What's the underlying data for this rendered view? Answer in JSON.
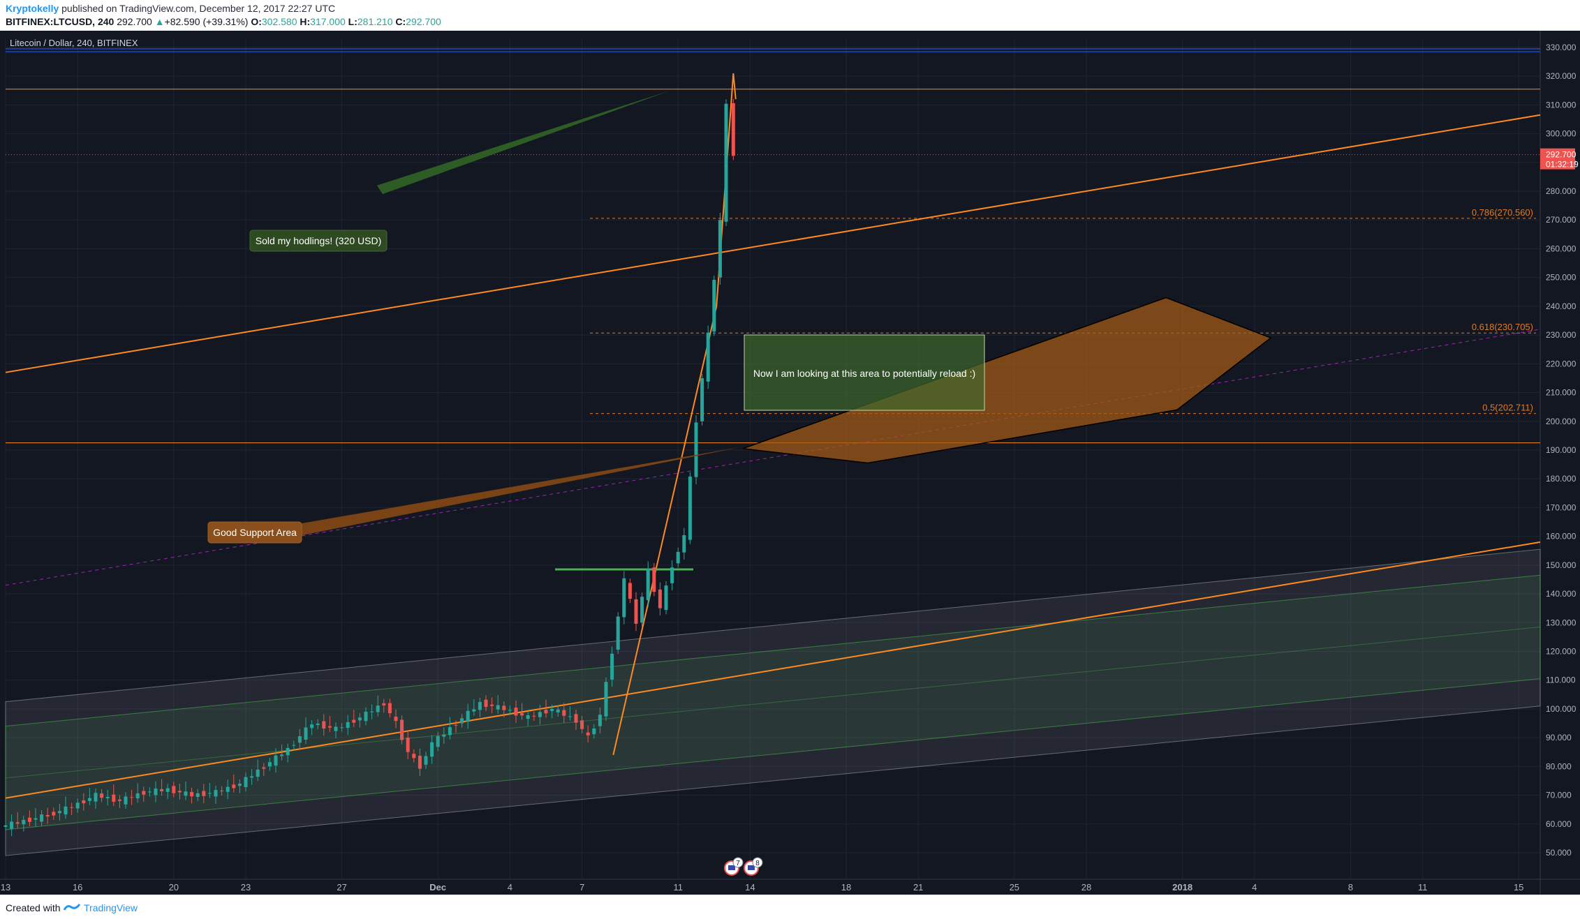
{
  "header": {
    "author": "Kryptokelly",
    "published": " published on TradingView.com, December 12, 2017 22:27 UTC",
    "symbol": "BITFINEX:LTCUSD, 240",
    "last": "292.700",
    "change_arrow": "▲",
    "change": "+82.590 (+39.31%)",
    "o_label": "O:",
    "o_value": "302.580",
    "h_label": "H:",
    "h_value": "317.000",
    "l_label": "L:",
    "l_value": "281.210",
    "c_label": "C:",
    "c_value": "292.700"
  },
  "footer": {
    "created_with": "Created with",
    "brand": "TradingView"
  },
  "chart_data": {
    "type": "candlestick",
    "title": "Litecoin / Dollar, 240, BITFINEX",
    "timeframe": "240",
    "exchange": "BITFINEX",
    "y_axis": {
      "min": 40,
      "max": 335,
      "ticks": [
        "50.000",
        "60.000",
        "70.000",
        "80.000",
        "90.000",
        "100.000",
        "110.000",
        "120.000",
        "130.000",
        "140.000",
        "150.000",
        "160.000",
        "170.000",
        "180.000",
        "190.000",
        "200.000",
        "210.000",
        "220.000",
        "230.000",
        "240.000",
        "250.000",
        "260.000",
        "270.000",
        "280.000",
        "290.000",
        "300.000",
        "310.000",
        "320.000",
        "330.000"
      ]
    },
    "x_axis": {
      "labels": [
        {
          "label": "13",
          "day": 0
        },
        {
          "label": "16",
          "day": 3
        },
        {
          "label": "20",
          "day": 7
        },
        {
          "label": "23",
          "day": 10
        },
        {
          "label": "27",
          "day": 14
        },
        {
          "label": "Dec",
          "day": 18
        },
        {
          "label": "4",
          "day": 21
        },
        {
          "label": "7",
          "day": 24
        },
        {
          "label": "11",
          "day": 28
        },
        {
          "label": "14",
          "day": 31
        },
        {
          "label": "18",
          "day": 35
        },
        {
          "label": "21",
          "day": 38
        },
        {
          "label": "25",
          "day": 42
        },
        {
          "label": "28",
          "day": 45
        },
        {
          "label": "2018",
          "day": 49
        },
        {
          "label": "4",
          "day": 52
        },
        {
          "label": "8",
          "day": 56
        },
        {
          "label": "11",
          "day": 59
        },
        {
          "label": "15",
          "day": 63
        }
      ]
    },
    "last_price": {
      "value": "292.700",
      "countdown": "01:32:19",
      "y": 292.7
    },
    "colors": {
      "up": "#26a69a",
      "down": "#ef5350",
      "fib": "#e07b25",
      "trend": "#ff8a1f",
      "channel": "#b2b5be",
      "green_channel": "#4caf50",
      "bg": "#131722"
    },
    "price_series": [
      {
        "day": 0,
        "close": 59
      },
      {
        "day": 2,
        "close": 63
      },
      {
        "day": 3,
        "close": 66
      },
      {
        "day": 4,
        "close": 70
      },
      {
        "day": 5,
        "close": 68
      },
      {
        "day": 6,
        "close": 71
      },
      {
        "day": 7,
        "close": 72
      },
      {
        "day": 8,
        "close": 70
      },
      {
        "day": 9,
        "close": 71
      },
      {
        "day": 10,
        "close": 74
      },
      {
        "day": 11,
        "close": 80
      },
      {
        "day": 12,
        "close": 86
      },
      {
        "day": 13,
        "close": 95
      },
      {
        "day": 14,
        "close": 93
      },
      {
        "day": 15,
        "close": 97
      },
      {
        "day": 16,
        "close": 102
      },
      {
        "day": 16.5,
        "close": 95
      },
      {
        "day": 17,
        "close": 85
      },
      {
        "day": 17.5,
        "close": 80
      },
      {
        "day": 18,
        "close": 88
      },
      {
        "day": 19,
        "close": 95
      },
      {
        "day": 20,
        "close": 102
      },
      {
        "day": 21,
        "close": 100
      },
      {
        "day": 22,
        "close": 97
      },
      {
        "day": 23,
        "close": 100
      },
      {
        "day": 24,
        "close": 96
      },
      {
        "day": 24.5,
        "close": 90
      },
      {
        "day": 25,
        "close": 98
      },
      {
        "day": 25.5,
        "close": 120
      },
      {
        "day": 26,
        "close": 145
      },
      {
        "day": 26.5,
        "close": 130
      },
      {
        "day": 27,
        "close": 148
      },
      {
        "day": 27.5,
        "close": 135
      },
      {
        "day": 28,
        "close": 150
      },
      {
        "day": 28.5,
        "close": 160
      },
      {
        "day": 29,
        "close": 200
      },
      {
        "day": 29.5,
        "close": 230
      },
      {
        "day": 30,
        "close": 270
      },
      {
        "day": 30.3,
        "close": 310
      },
      {
        "day": 30.6,
        "close": 292.7
      }
    ],
    "fibonacci": [
      {
        "label": "0.786(270.560)",
        "value": 270.56
      },
      {
        "label": "0.618(230.705)",
        "value": 230.705
      },
      {
        "label": "0.5(202.711)",
        "value": 202.711
      }
    ],
    "horizontal_lines": [
      {
        "value": 329.5,
        "color": "#2962ff"
      },
      {
        "value": 315.5,
        "color": "#ff8a1f"
      },
      {
        "value": 192.5,
        "color": "#ff8a1f"
      }
    ],
    "annotations": [
      {
        "text": "Sold my hodlings! (320 USD)",
        "style": "green-callout"
      },
      {
        "text": "Good Support Area",
        "style": "orange-callout"
      },
      {
        "text": "Now I am looking at this area to potentially reload :)",
        "style": "green-box"
      }
    ],
    "event_badges": [
      "7",
      "8"
    ]
  }
}
